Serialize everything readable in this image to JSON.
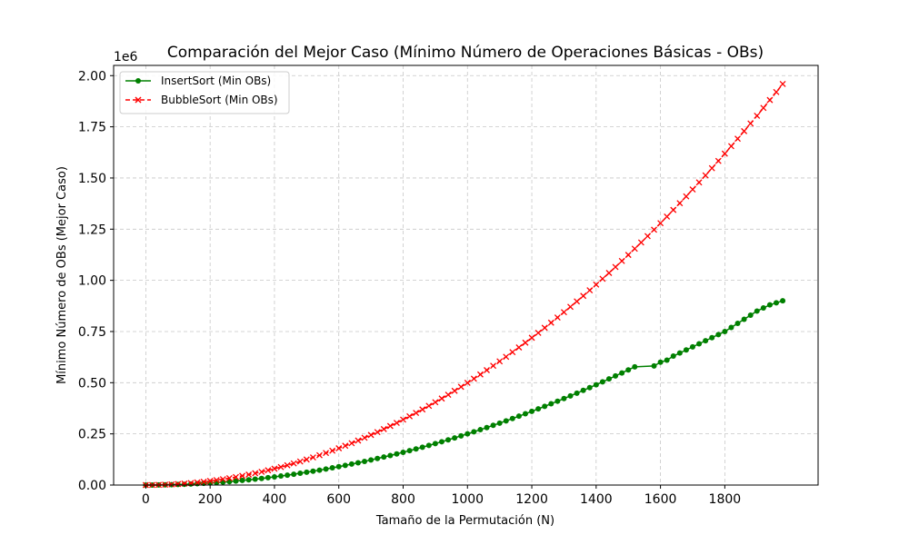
{
  "chart_data": {
    "type": "line",
    "title": "Comparación del Mejor Caso (Mínimo Número de Operaciones Básicas - OBs)",
    "xlabel": "Tamaño de la Permutación (N)",
    "ylabel": "Mínimo Número de OBs (Mejor Caso)",
    "y_offset_label": "1e6",
    "xlim": [
      -100,
      2090
    ],
    "ylim": [
      0,
      2050000
    ],
    "x_ticks": [
      0,
      200,
      400,
      600,
      800,
      1000,
      1200,
      1400,
      1600,
      1800
    ],
    "x_tick_labels": [
      "0",
      "200",
      "400",
      "600",
      "800",
      "1000",
      "1200",
      "1400",
      "1600",
      "1800"
    ],
    "y_ticks": [
      0,
      250000,
      500000,
      750000,
      1000000,
      1250000,
      1500000,
      1750000,
      2000000
    ],
    "y_tick_labels": [
      "0.00",
      "0.25",
      "0.50",
      "0.75",
      "1.00",
      "1.25",
      "1.50",
      "1.75",
      "2.00"
    ],
    "grid": true,
    "legend_position": "top-left",
    "series": [
      {
        "name": "InsertSort (Min OBs)",
        "color": "#008000",
        "marker": "circle",
        "line_style": "solid",
        "x": [
          0,
          20,
          40,
          60,
          80,
          100,
          120,
          140,
          160,
          180,
          200,
          220,
          240,
          260,
          280,
          300,
          320,
          340,
          360,
          380,
          400,
          420,
          440,
          460,
          480,
          500,
          520,
          540,
          560,
          580,
          600,
          620,
          640,
          660,
          680,
          700,
          720,
          740,
          760,
          780,
          800,
          820,
          840,
          860,
          880,
          900,
          920,
          940,
          960,
          980,
          1000,
          1020,
          1040,
          1060,
          1080,
          1100,
          1120,
          1140,
          1160,
          1180,
          1200,
          1220,
          1240,
          1260,
          1280,
          1300,
          1320,
          1340,
          1360,
          1380,
          1400,
          1420,
          1440,
          1460,
          1480,
          1500,
          1520,
          1580,
          1600,
          1620,
          1640,
          1660,
          1680,
          1700,
          1720,
          1740,
          1760,
          1780,
          1800,
          1820,
          1840,
          1860,
          1880,
          1900,
          1920,
          1940,
          1960,
          1980
        ],
        "y": [
          0,
          100,
          400,
          900,
          1600,
          2500,
          3600,
          4900,
          6400,
          8100,
          10000,
          12100,
          14400,
          16900,
          19600,
          22500,
          25600,
          28900,
          32400,
          36100,
          40000,
          44100,
          48400,
          52900,
          57600,
          62500,
          67600,
          72900,
          78400,
          84100,
          90000,
          96100,
          102400,
          108900,
          115600,
          122500,
          129600,
          136900,
          144400,
          152100,
          160000,
          168100,
          176400,
          184900,
          193600,
          202500,
          211600,
          220900,
          230400,
          240100,
          250000,
          260100,
          270400,
          280900,
          291600,
          302500,
          313600,
          324900,
          336400,
          348100,
          360000,
          372100,
          384400,
          396900,
          409600,
          422500,
          435600,
          448900,
          462400,
          476100,
          490000,
          504100,
          518400,
          532900,
          547600,
          562500,
          577600,
          582000,
          600000,
          610000,
          630000,
          645000,
          660000,
          675000,
          690000,
          705000,
          720000,
          735000,
          750000,
          770000,
          790000,
          810000,
          830000,
          850000,
          865000,
          880000,
          890000,
          900000
        ]
      },
      {
        "name": "BubbleSort (Min OBs)",
        "color": "#ff0000",
        "marker": "x",
        "line_style": "dashed",
        "x": [
          0,
          20,
          40,
          60,
          80,
          100,
          120,
          140,
          160,
          180,
          200,
          220,
          240,
          260,
          280,
          300,
          320,
          340,
          360,
          380,
          400,
          420,
          440,
          460,
          480,
          500,
          520,
          540,
          560,
          580,
          600,
          620,
          640,
          660,
          680,
          700,
          720,
          740,
          760,
          780,
          800,
          820,
          840,
          860,
          880,
          900,
          920,
          940,
          960,
          980,
          1000,
          1020,
          1040,
          1060,
          1080,
          1100,
          1120,
          1140,
          1160,
          1180,
          1200,
          1220,
          1240,
          1260,
          1280,
          1300,
          1320,
          1340,
          1360,
          1380,
          1400,
          1420,
          1440,
          1460,
          1480,
          1500,
          1520,
          1540,
          1560,
          1580,
          1600,
          1620,
          1640,
          1660,
          1680,
          1700,
          1720,
          1740,
          1760,
          1780,
          1800,
          1820,
          1840,
          1860,
          1880,
          1900,
          1920,
          1940,
          1960,
          1980
        ],
        "y": [
          0,
          190,
          780,
          1770,
          3160,
          4950,
          7140,
          9730,
          12720,
          16110,
          19900,
          24090,
          28680,
          33670,
          39060,
          44850,
          51040,
          57630,
          64620,
          72010,
          79800,
          87990,
          96580,
          105570,
          114960,
          124750,
          134940,
          145530,
          156520,
          167910,
          179700,
          191890,
          204480,
          217470,
          230860,
          244650,
          258840,
          273430,
          288420,
          303810,
          319600,
          335790,
          352380,
          369370,
          386760,
          404550,
          422740,
          441330,
          460320,
          479710,
          499500,
          519690,
          540280,
          561270,
          582660,
          604450,
          626640,
          649230,
          672220,
          695610,
          719400,
          743590,
          768180,
          793170,
          818560,
          844350,
          870540,
          897130,
          924120,
          951510,
          979300,
          1007490,
          1036080,
          1065070,
          1094460,
          1124250,
          1154440,
          1185030,
          1216020,
          1247410,
          1279200,
          1311390,
          1343980,
          1376970,
          1410360,
          1444150,
          1478340,
          1512930,
          1547920,
          1583310,
          1619100,
          1655290,
          1691880,
          1728870,
          1766260,
          1804050,
          1842240,
          1880830,
          1919820,
          1959210
        ]
      }
    ]
  }
}
